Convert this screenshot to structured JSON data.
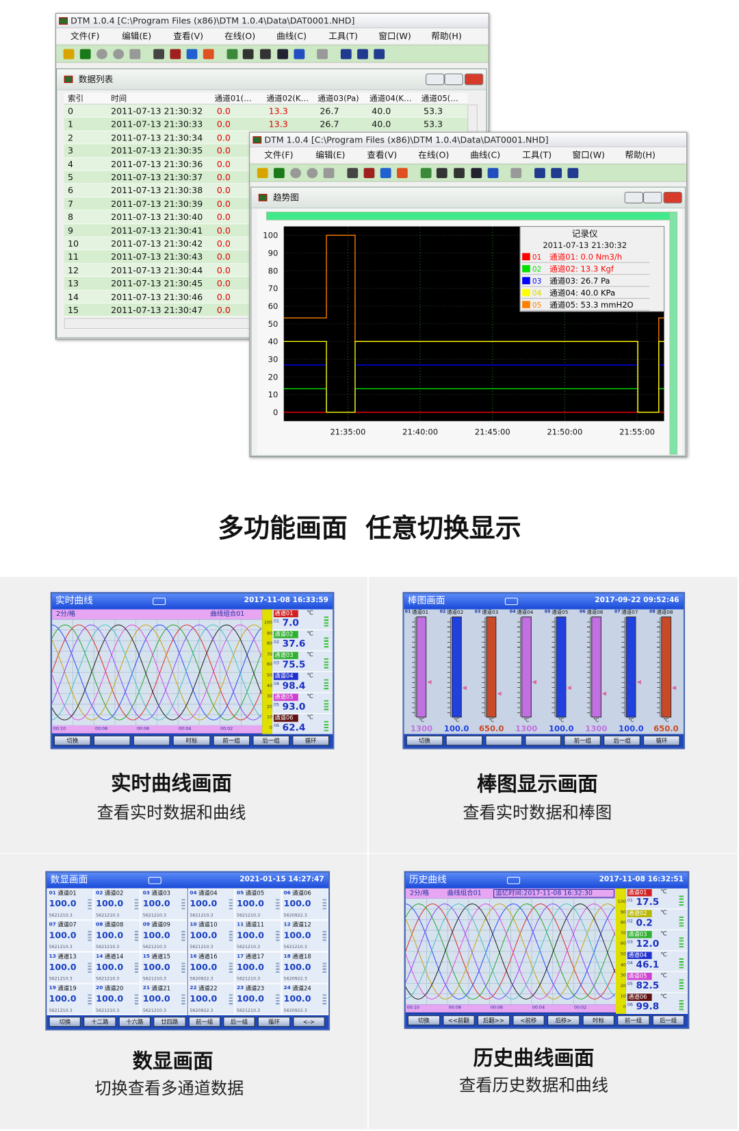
{
  "window_title": "DTM 1.0.4 [C:\\Program Files (x86)\\DTM 1.0.4\\Data\\DAT0001.NHD]",
  "menu": [
    "文件(F)",
    "编辑(E)",
    "查看(V)",
    "在线(O)",
    "曲线(C)",
    "工具(T)",
    "窗口(W)",
    "帮助(H)"
  ],
  "data_list": {
    "title": "数据列表",
    "columns": [
      "索引",
      "时间",
      "通道01(…",
      "通道02(K…",
      "通道03(Pa)",
      "通道04(K…",
      "通道05(…"
    ],
    "rows": [
      [
        "0",
        "2011-07-13 21:30:32",
        "0.0",
        "13.3",
        "26.7",
        "40.0",
        "53.3"
      ],
      [
        "1",
        "2011-07-13 21:30:33",
        "0.0",
        "13.3",
        "26.7",
        "40.0",
        "53.3"
      ],
      [
        "2",
        "2011-07-13 21:30:34",
        "0.0"
      ],
      [
        "3",
        "2011-07-13 21:30:35",
        "0.0"
      ],
      [
        "4",
        "2011-07-13 21:30:36",
        "0.0"
      ],
      [
        "5",
        "2011-07-13 21:30:37",
        "0.0"
      ],
      [
        "6",
        "2011-07-13 21:30:38",
        "0.0"
      ],
      [
        "7",
        "2011-07-13 21:30:39",
        "0.0"
      ],
      [
        "8",
        "2011-07-13 21:30:40",
        "0.0"
      ],
      [
        "9",
        "2011-07-13 21:30:41",
        "0.0"
      ],
      [
        "10",
        "2011-07-13 21:30:42",
        "0.0"
      ],
      [
        "11",
        "2011-07-13 21:30:43",
        "0.0"
      ],
      [
        "12",
        "2011-07-13 21:30:44",
        "0.0"
      ],
      [
        "13",
        "2011-07-13 21:30:45",
        "0.0"
      ],
      [
        "14",
        "2011-07-13 21:30:46",
        "0.0"
      ],
      [
        "15",
        "2011-07-13 21:30:47",
        "0.0"
      ]
    ]
  },
  "trend": {
    "title": "趋势图",
    "ylim": [
      -5,
      105
    ],
    "yticks": [
      0,
      10,
      20,
      30,
      40,
      50,
      60,
      70,
      80,
      90,
      100
    ],
    "xlim": [
      "21:30:34",
      "21:56:52"
    ],
    "xticks": [
      "21:35:00",
      "21:40:00",
      "21:45:00",
      "21:50:00",
      "21:55:00"
    ],
    "x": [
      "21:30:34",
      "21:33:31",
      "21:33:31",
      "21:35:30",
      "21:35:30",
      "21:55:03",
      "21:55:03",
      "21:56:30",
      "21:56:30",
      "21:56:52"
    ],
    "series": [
      {
        "color": "#ff0000",
        "values": [
          0,
          0,
          0,
          0,
          0,
          0,
          0,
          0,
          0,
          0
        ]
      },
      {
        "color": "#00e000",
        "values": [
          13.3,
          13.3,
          0,
          0,
          13.3,
          13.3,
          0,
          0,
          13.3,
          13.3
        ]
      },
      {
        "color": "#0000ff",
        "values": [
          26.7,
          26.7,
          0,
          0,
          26.7,
          26.7,
          0,
          0,
          26.7,
          26.7
        ]
      },
      {
        "color": "#ffff00",
        "values": [
          40,
          40,
          0,
          0,
          40,
          40,
          0,
          0,
          40,
          40
        ]
      },
      {
        "color": "#ff8000",
        "values": [
          53.3,
          53.3,
          100,
          100,
          40,
          40,
          0,
          0,
          53.3,
          53.3
        ]
      }
    ],
    "legend": {
      "title": "记录仪",
      "time": "2011-07-13 21:30:32",
      "entries": [
        {
          "id": "01",
          "text": "通道01: 0.0 Nm3/h",
          "text_color": "#ff0000"
        },
        {
          "id": "02",
          "text": "通道02: 13.3 Kgf",
          "text_color": "#ff0000"
        },
        {
          "id": "03",
          "text": "通道03: 26.7 Pa",
          "text_color": "#000000"
        },
        {
          "id": "04",
          "text": "通道04: 40.0 KPa",
          "text_color": "#000000"
        },
        {
          "id": "05",
          "text": "通道05: 53.3 mmH2O",
          "text_color": "#000000"
        }
      ]
    }
  },
  "headline": "多功能画面  任意切换显示",
  "panels": [
    {
      "caption": "实时曲线画面",
      "subcaption": "查看实时数据和曲线",
      "screen": {
        "kind": "realtime",
        "title": "实时曲线",
        "time": "2017-11-08 16:33:59",
        "scale": "2分/格",
        "group": "曲线组合01",
        "time_labels": [
          "00:10",
          "00:08",
          "00:06",
          "00:04",
          "00:02"
        ],
        "scale_ticks": [
          100,
          90,
          80,
          70,
          60,
          50,
          40,
          30,
          20,
          10,
          0
        ],
        "unit": "℃",
        "channels": [
          {
            "id": "01",
            "name": "通道01",
            "value": "7.0",
            "color": "#d02020"
          },
          {
            "id": "02",
            "name": "通道02",
            "value": "37.6",
            "color": "#30b030"
          },
          {
            "id": "03",
            "name": "通道03",
            "value": "75.5",
            "color": "#30b030"
          },
          {
            "id": "04",
            "name": "通道04",
            "value": "98.4",
            "color": "#2030d0"
          },
          {
            "id": "05",
            "name": "通道05",
            "value": "93.0",
            "color": "#d040d0"
          },
          {
            "id": "06",
            "name": "通道06",
            "value": "62.4",
            "color": "#601010"
          }
        ],
        "buttons": [
          "切换",
          null,
          null,
          "时标",
          "前一组",
          "后一组",
          "循环"
        ]
      }
    },
    {
      "caption": "棒图显示画面",
      "subcaption": "查看实时数据和棒图",
      "screen": {
        "kind": "bar",
        "title": "棒图画面",
        "time": "2017-09-22 09:52:46",
        "unit": "℃",
        "channels": [
          {
            "id": "01",
            "name": "通道01",
            "value": "1300",
            "color": "#c070e0"
          },
          {
            "id": "02",
            "name": "通道02",
            "value": "100.0",
            "color": "#2040e0"
          },
          {
            "id": "03",
            "name": "通道03",
            "value": "650.0",
            "color": "#c84a28"
          },
          {
            "id": "04",
            "name": "通道04",
            "value": "1300",
            "color": "#c070e0"
          },
          {
            "id": "05",
            "name": "通道05",
            "value": "100.0",
            "color": "#2040e0"
          },
          {
            "id": "06",
            "name": "通道06",
            "value": "1300",
            "color": "#c070e0"
          },
          {
            "id": "07",
            "name": "通道07",
            "value": "100.0",
            "color": "#2040e0"
          },
          {
            "id": "08",
            "name": "通道08",
            "value": "650.0",
            "color": "#c84a28"
          }
        ],
        "buttons": [
          "切换",
          null,
          null,
          null,
          "前一组",
          "后一组",
          "循环"
        ]
      }
    },
    {
      "caption": "数显画面",
      "subcaption": "切换查看多通道数据",
      "screen": {
        "kind": "digital",
        "title": "数显画面",
        "time": "2021-01-15 14:27:47",
        "channels": [
          {
            "id": "01",
            "name": "通道01",
            "value": "100.0",
            "total": "5621210.3"
          },
          {
            "id": "02",
            "name": "通道02",
            "value": "100.0",
            "total": "5621210.3"
          },
          {
            "id": "03",
            "name": "通道03",
            "value": "100.0",
            "total": "5621210.3"
          },
          {
            "id": "04",
            "name": "通道04",
            "value": "100.0",
            "total": "5621210.3"
          },
          {
            "id": "05",
            "name": "通道05",
            "value": "100.0",
            "total": "5621210.3"
          },
          {
            "id": "06",
            "name": "通道06",
            "value": "100.0",
            "total": "5620922.3"
          },
          {
            "id": "07",
            "name": "通道07",
            "value": "100.0",
            "total": "5621210.3"
          },
          {
            "id": "08",
            "name": "通道08",
            "value": "100.0",
            "total": "5621210.3"
          },
          {
            "id": "09",
            "name": "通道09",
            "value": "100.0",
            "total": "5621210.3"
          },
          {
            "id": "10",
            "name": "通道10",
            "value": "100.0",
            "total": "5621210.3"
          },
          {
            "id": "11",
            "name": "通道11",
            "value": "100.0",
            "total": "5621210.3"
          },
          {
            "id": "12",
            "name": "通道12",
            "value": "100.0",
            "total": "5621210.3"
          },
          {
            "id": "13",
            "name": "通道13",
            "value": "100.0",
            "total": "5621210.3"
          },
          {
            "id": "14",
            "name": "通道14",
            "value": "100.0",
            "total": "5621210.3"
          },
          {
            "id": "15",
            "name": "通道15",
            "value": "100.0",
            "total": "5621210.3"
          },
          {
            "id": "16",
            "name": "通道16",
            "value": "100.0",
            "total": "5620922.3"
          },
          {
            "id": "17",
            "name": "通道17",
            "value": "100.0",
            "total": "5621210.3"
          },
          {
            "id": "18",
            "name": "通道18",
            "value": "100.0",
            "total": "5620922.3"
          },
          {
            "id": "19",
            "name": "通道19",
            "value": "100.0",
            "total": "5621210.3"
          },
          {
            "id": "20",
            "name": "通道20",
            "value": "100.0",
            "total": "5621210.3"
          },
          {
            "id": "21",
            "name": "通道21",
            "value": "100.0",
            "total": "5621210.3"
          },
          {
            "id": "22",
            "name": "通道22",
            "value": "100.0",
            "total": "5620922.3"
          },
          {
            "id": "23",
            "name": "通道23",
            "value": "100.0",
            "total": "5621210.3"
          },
          {
            "id": "24",
            "name": "通道24",
            "value": "100.0",
            "total": "5620922.3"
          }
        ],
        "buttons": [
          "切换",
          "十二路",
          "十六路",
          "廿四路",
          "前一组",
          "后一组",
          "循环",
          "<->"
        ]
      }
    },
    {
      "caption": "历史曲线画面",
      "subcaption": "查看历史数据和曲线",
      "screen": {
        "kind": "history",
        "title": "历史曲线",
        "time": "2017-11-08 16:32:51",
        "scale": "2分/格",
        "group": "曲线组合01",
        "recall": "追忆时间:2017-11-08 16:32:30",
        "time_labels": [
          "00:10",
          "00:08",
          "00:06",
          "00:04",
          "00:02"
        ],
        "scale_ticks": [
          100,
          90,
          80,
          70,
          60,
          50,
          40,
          30,
          20,
          10,
          0
        ],
        "unit": "℃",
        "channels": [
          {
            "id": "01",
            "name": "通道01",
            "value": "17.5",
            "color": "#d02020"
          },
          {
            "id": "02",
            "name": "通道02",
            "value": "0.2",
            "color": "#b8b800"
          },
          {
            "id": "03",
            "name": "通道03",
            "value": "12.0",
            "color": "#30b030"
          },
          {
            "id": "04",
            "name": "通道04",
            "value": "46.1",
            "color": "#2030d0"
          },
          {
            "id": "05",
            "name": "通道05",
            "value": "82.5",
            "color": "#d040d0"
          },
          {
            "id": "06",
            "name": "通道06",
            "value": "99.8",
            "color": "#601010"
          }
        ],
        "buttons": [
          "切换",
          "<<前翻",
          "后翻>>",
          "<前移",
          "后移>",
          "时标",
          "前一组",
          "后一组"
        ]
      }
    }
  ]
}
